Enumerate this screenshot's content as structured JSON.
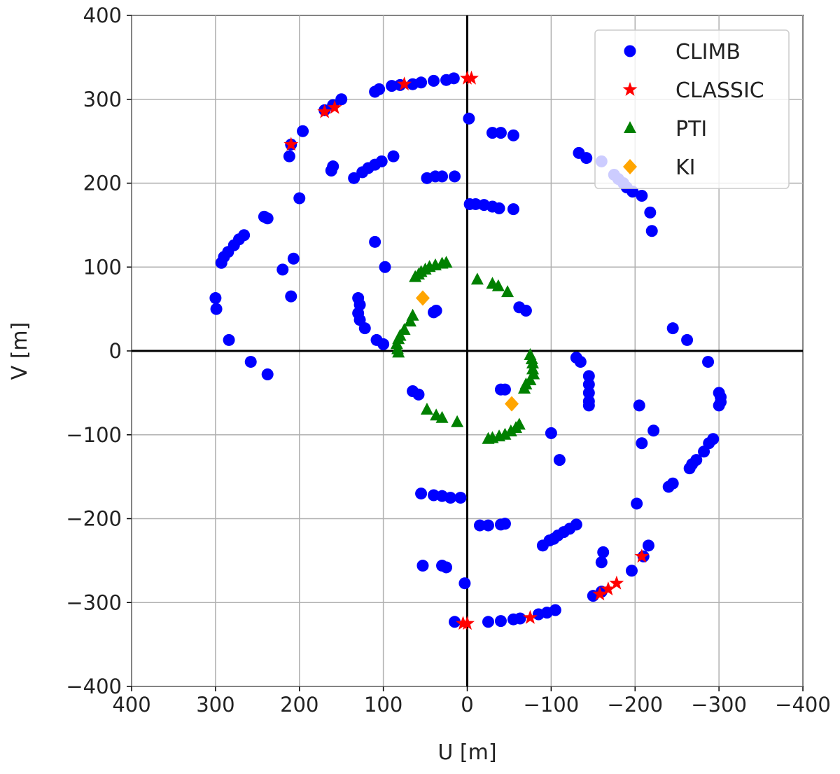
{
  "chart_data": {
    "type": "scatter",
    "xlabel": "U [m]",
    "ylabel": "V [m]",
    "xlim": [
      400,
      -400
    ],
    "ylim": [
      -400,
      400
    ],
    "x_inverted": true,
    "grid": true,
    "zero_axes": true,
    "legend_position": "top-right",
    "xticks": [
      400,
      300,
      200,
      100,
      0,
      -100,
      -200,
      -300,
      -400
    ],
    "yticks": [
      400,
      300,
      200,
      100,
      0,
      -100,
      -200,
      -300,
      -400
    ],
    "xtick_labels": [
      "400",
      "300",
      "200",
      "100",
      "0",
      "−100",
      "−200",
      "−300",
      "−400"
    ],
    "ytick_labels": [
      "400",
      "300",
      "200",
      "100",
      "0",
      "−100",
      "−200",
      "−300",
      "−400"
    ],
    "series": [
      {
        "name": "CLIMB",
        "marker": "circle",
        "color": "#0000ff",
        "points": [
          [
            16,
            325
          ],
          [
            25,
            323
          ],
          [
            40,
            322
          ],
          [
            55,
            320
          ],
          [
            65,
            318
          ],
          [
            80,
            317
          ],
          [
            90,
            316
          ],
          [
            105,
            312
          ],
          [
            110,
            309
          ],
          [
            150,
            300
          ],
          [
            160,
            293
          ],
          [
            170,
            287
          ],
          [
            196,
            262
          ],
          [
            210,
            246
          ],
          [
            212,
            232
          ],
          [
            160,
            220
          ],
          [
            162,
            215
          ],
          [
            135,
            206
          ],
          [
            125,
            213
          ],
          [
            118,
            218
          ],
          [
            110,
            222
          ],
          [
            102,
            226
          ],
          [
            88,
            232
          ],
          [
            48,
            206
          ],
          [
            38,
            208
          ],
          [
            30,
            208
          ],
          [
            15,
            208
          ],
          [
            -3,
            175
          ],
          [
            -10,
            175
          ],
          [
            -20,
            174
          ],
          [
            -30,
            172
          ],
          [
            -38,
            170
          ],
          [
            -55,
            169
          ],
          [
            -30,
            260
          ],
          [
            -40,
            260
          ],
          [
            -55,
            257
          ],
          [
            -2,
            277
          ],
          [
            -133,
            236
          ],
          [
            -142,
            230
          ],
          [
            -160,
            226
          ],
          [
            -175,
            210
          ],
          [
            -180,
            205
          ],
          [
            -186,
            200
          ],
          [
            -190,
            195
          ],
          [
            -197,
            190
          ],
          [
            -208,
            185
          ],
          [
            -218,
            165
          ],
          [
            -220,
            143
          ],
          [
            200,
            182
          ],
          [
            207,
            110
          ],
          [
            210,
            65
          ],
          [
            220,
            97
          ],
          [
            238,
            158
          ],
          [
            242,
            160
          ],
          [
            266,
            138
          ],
          [
            272,
            133
          ],
          [
            278,
            126
          ],
          [
            285,
            118
          ],
          [
            290,
            112
          ],
          [
            293,
            105
          ],
          [
            300,
            63
          ],
          [
            299,
            50
          ],
          [
            284,
            13
          ],
          [
            258,
            -13
          ],
          [
            238,
            -28
          ],
          [
            110,
            130
          ],
          [
            98,
            100
          ],
          [
            130,
            63
          ],
          [
            128,
            55
          ],
          [
            130,
            45
          ],
          [
            128,
            37
          ],
          [
            122,
            27
          ],
          [
            108,
            13
          ],
          [
            100,
            8
          ],
          [
            37,
            48
          ],
          [
            40,
            46
          ],
          [
            -62,
            52
          ],
          [
            -70,
            48
          ],
          [
            -245,
            27
          ],
          [
            -262,
            13
          ],
          [
            -287,
            -13
          ],
          [
            -300,
            -50
          ],
          [
            -302,
            -55
          ],
          [
            -302,
            -61
          ],
          [
            -300,
            -65
          ],
          [
            -293,
            -105
          ],
          [
            -288,
            -110
          ],
          [
            -282,
            -120
          ],
          [
            -273,
            -130
          ],
          [
            -268,
            -135
          ],
          [
            -265,
            -140
          ],
          [
            -245,
            -158
          ],
          [
            -240,
            -162
          ],
          [
            -205,
            -65
          ],
          [
            -208,
            -110
          ],
          [
            -222,
            -95
          ],
          [
            -202,
            -182
          ],
          [
            -196,
            -262
          ],
          [
            -216,
            -232
          ],
          [
            -210,
            -245
          ],
          [
            -162,
            -240
          ],
          [
            -160,
            -252
          ],
          [
            -130,
            -207
          ],
          [
            -122,
            -212
          ],
          [
            -115,
            -216
          ],
          [
            -108,
            -220
          ],
          [
            -103,
            -224
          ],
          [
            -98,
            -226
          ],
          [
            -90,
            -232
          ],
          [
            -130,
            -8
          ],
          [
            -135,
            -13
          ],
          [
            -145,
            -30
          ],
          [
            -145,
            -40
          ],
          [
            -145,
            -50
          ],
          [
            -145,
            -60
          ],
          [
            -145,
            -65
          ],
          [
            -40,
            -46
          ],
          [
            -45,
            -46
          ],
          [
            -100,
            -98
          ],
          [
            -110,
            -130
          ],
          [
            -15,
            -208
          ],
          [
            -25,
            -208
          ],
          [
            -40,
            -207
          ],
          [
            -45,
            -206
          ],
          [
            65,
            -48
          ],
          [
            58,
            -52
          ],
          [
            55,
            -170
          ],
          [
            40,
            -172
          ],
          [
            30,
            -173
          ],
          [
            20,
            -175
          ],
          [
            8,
            -175
          ],
          [
            53,
            -256
          ],
          [
            30,
            -256
          ],
          [
            25,
            -258
          ],
          [
            3,
            -277
          ],
          [
            15,
            -323
          ],
          [
            -25,
            -323
          ],
          [
            -40,
            -322
          ],
          [
            -55,
            -320
          ],
          [
            -63,
            -319
          ],
          [
            -85,
            -314
          ],
          [
            -95,
            -312
          ],
          [
            -105,
            -309
          ],
          [
            -150,
            -292
          ],
          [
            -160,
            -287
          ]
        ]
      },
      {
        "name": "CLASSIC",
        "marker": "star",
        "color": "#ff0000",
        "points": [
          [
            0,
            325
          ],
          [
            -5,
            325
          ],
          [
            75,
            318
          ],
          [
            170,
            285
          ],
          [
            158,
            290
          ],
          [
            210,
            246
          ],
          [
            0,
            -325
          ],
          [
            5,
            -325
          ],
          [
            -75,
            -318
          ],
          [
            -158,
            -290
          ],
          [
            -168,
            -284
          ],
          [
            -178,
            -277
          ],
          [
            -208,
            -245
          ]
        ]
      },
      {
        "name": "PTI",
        "marker": "triangle",
        "color": "#008000",
        "points": [
          [
            25,
            105
          ],
          [
            30,
            104
          ],
          [
            38,
            102
          ],
          [
            45,
            100
          ],
          [
            50,
            97
          ],
          [
            55,
            94
          ],
          [
            58,
            91
          ],
          [
            62,
            88
          ],
          [
            65,
            42
          ],
          [
            68,
            35
          ],
          [
            75,
            25
          ],
          [
            80,
            18
          ],
          [
            82,
            14
          ],
          [
            84,
            8
          ],
          [
            83,
            2
          ],
          [
            82,
            -2
          ],
          [
            -12,
            85
          ],
          [
            -30,
            80
          ],
          [
            -37,
            77
          ],
          [
            -48,
            70
          ],
          [
            -75,
            -5
          ],
          [
            -77,
            -10
          ],
          [
            -78,
            -15
          ],
          [
            -78,
            -22
          ],
          [
            -79,
            -28
          ],
          [
            -75,
            -35
          ],
          [
            -70,
            -40
          ],
          [
            -68,
            -45
          ],
          [
            -25,
            -105
          ],
          [
            -30,
            -104
          ],
          [
            -38,
            -102
          ],
          [
            -45,
            -100
          ],
          [
            -52,
            -96
          ],
          [
            -58,
            -92
          ],
          [
            -62,
            -88
          ],
          [
            12,
            -85
          ],
          [
            30,
            -80
          ],
          [
            37,
            -77
          ],
          [
            48,
            -70
          ]
        ]
      },
      {
        "name": "KI",
        "marker": "diamond",
        "color": "#ffa500",
        "points": [
          [
            53,
            63
          ],
          [
            -53,
            -63
          ]
        ]
      }
    ]
  }
}
